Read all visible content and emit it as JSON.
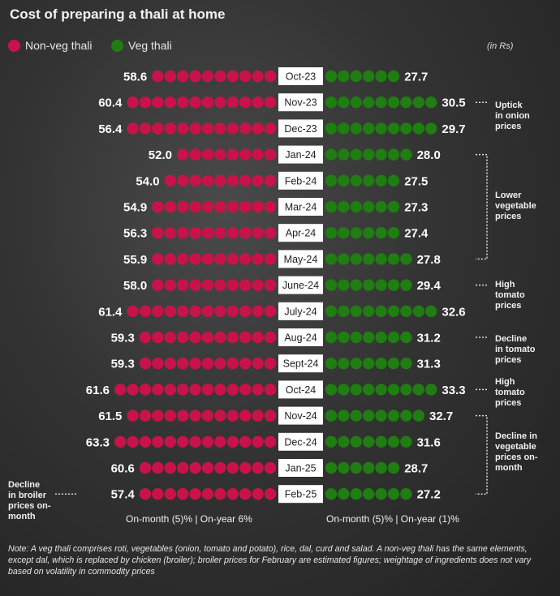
{
  "title": "Cost of preparing a thali at home",
  "unit": "(in Rs)",
  "colors": {
    "nonveg": "#c8134a",
    "veg": "#1f7d12",
    "month_box": "#ffffff"
  },
  "chart_data": {
    "type": "dot",
    "categories": [
      "Oct-23",
      "Nov-23",
      "Dec-23",
      "Jan-24",
      "Feb-24",
      "Mar-24",
      "Apr-24",
      "May-24",
      "June-24",
      "July-24",
      "Aug-24",
      "Sept-24",
      "Oct-24",
      "Nov-24",
      "Dec-24",
      "Jan-25",
      "Feb-25"
    ],
    "series": [
      {
        "name": "Non-veg thali",
        "color": "#c8134a",
        "values": [
          58.6,
          60.4,
          56.4,
          52.0,
          54.0,
          54.9,
          56.3,
          55.9,
          58.0,
          61.4,
          59.3,
          59.3,
          61.6,
          61.5,
          63.3,
          60.6,
          57.4
        ],
        "dots": [
          10,
          12,
          12,
          8,
          9,
          10,
          10,
          10,
          10,
          12,
          11,
          11,
          13,
          12,
          13,
          11,
          11
        ]
      },
      {
        "name": "Veg thali",
        "color": "#1f7d12",
        "values": [
          27.7,
          30.5,
          29.7,
          28.0,
          27.5,
          27.3,
          27.4,
          27.8,
          29.4,
          32.6,
          31.2,
          31.3,
          33.3,
          32.7,
          31.6,
          28.7,
          27.2
        ],
        "dots": [
          6,
          9,
          9,
          7,
          6,
          6,
          6,
          7,
          7,
          9,
          7,
          7,
          9,
          8,
          7,
          6,
          7
        ]
      }
    ],
    "legend_placement": "top-left"
  },
  "legend": {
    "nonveg": "Non-veg thali",
    "veg": "Veg thali"
  },
  "annotations": [
    {
      "text": "Uptick in onion prices",
      "lines": [
        "Uptick",
        "in onion",
        "prices"
      ]
    },
    {
      "text": "Lower vegetable prices",
      "lines": [
        "Lower",
        "vegetable",
        "prices"
      ]
    },
    {
      "text": "High tomato prices",
      "lines": [
        "High",
        "tomato",
        "prices"
      ]
    },
    {
      "text": "Decline in tomato prices",
      "lines": [
        "Decline",
        "in tomato",
        "prices"
      ]
    },
    {
      "text": "High tomato prices",
      "lines": [
        "High",
        "tomato",
        "prices"
      ]
    },
    {
      "text": "Decline in vegetable prices on-month",
      "lines": [
        "Decline in",
        "vegetable",
        "prices on-",
        "month"
      ]
    },
    {
      "text": "Decline in broiler prices on-month",
      "lines": [
        "Decline",
        "in broiler",
        "prices on-",
        "month"
      ]
    }
  ],
  "summary": {
    "nonveg": "On-month (5)% | On-year 6%",
    "veg": "On-month (5)% | On-year (1)%"
  },
  "footnote": "Note: A veg thali comprises roti, vegetables (onion, tomato and potato), rice, dal, curd and salad. A non-veg thali has the same elements, except dal, which is replaced by chicken (broiler); broiler prices for February are estimated figures; weightage of ingredients does not vary based on volatility in commodity prices"
}
